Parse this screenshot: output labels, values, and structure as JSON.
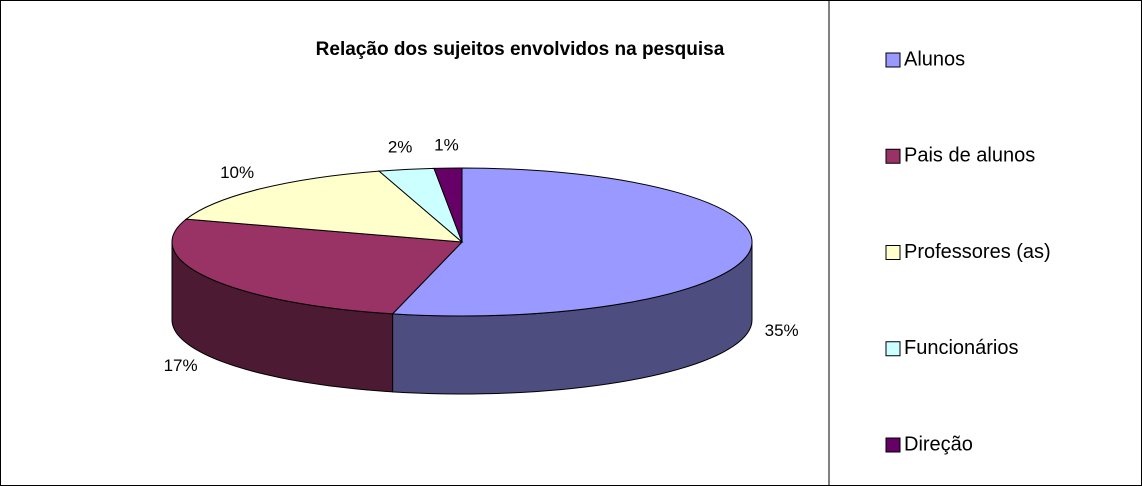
{
  "chart_data": {
    "type": "pie",
    "title": "Relação dos sujeitos envolvidos na pesquisa",
    "categories": [
      "Alunos",
      "Pais de alunos",
      "Professores (as)",
      "Funcionários",
      "Direção"
    ],
    "values": [
      35,
      17,
      10,
      2,
      1
    ],
    "value_labels": [
      "35%",
      "17%",
      "10%",
      "2%",
      "1%"
    ],
    "colors": [
      "#9999ff",
      "#993366",
      "#ffffcc",
      "#ccffff",
      "#660066"
    ],
    "legend": "right"
  }
}
